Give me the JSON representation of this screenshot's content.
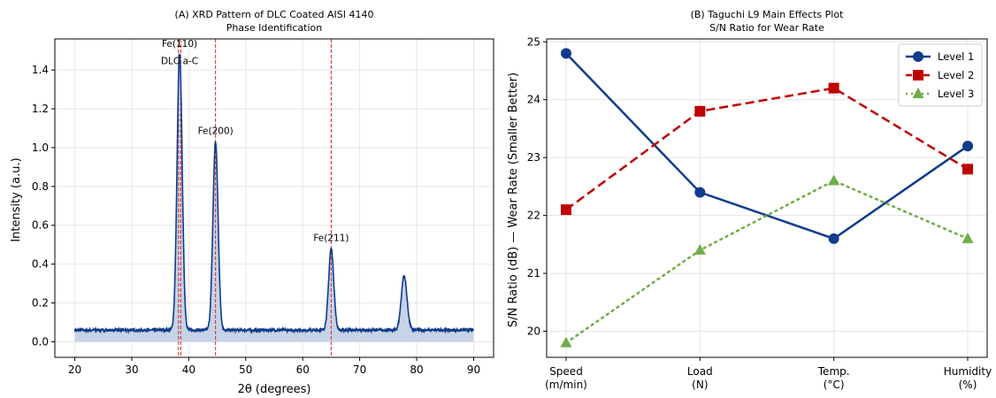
{
  "chart_data": [
    {
      "type": "line",
      "title": "(A) XRD Pattern of DLC Coated AISI 4140",
      "subtitle": "Phase Identification",
      "xlabel": "2θ (degrees)",
      "ylabel": "Intensity (a.u.)",
      "xlim": [
        16.5,
        93.5
      ],
      "ylim": [
        -0.08,
        1.56
      ],
      "xticks": [
        20,
        30,
        40,
        50,
        60,
        70,
        80,
        90
      ],
      "yticks": [
        0.0,
        0.2,
        0.4,
        0.6,
        0.8,
        1.0,
        1.2,
        1.4
      ],
      "grid": true,
      "baseline": 0.06,
      "fill_color": "#c7d3e6",
      "line_color": "#0f3c8c",
      "peaks": [
        {
          "x": 38.4,
          "height": 1.48,
          "width": 0.45
        },
        {
          "x": 44.7,
          "height": 1.03,
          "width": 0.45
        },
        {
          "x": 65.0,
          "height": 0.48,
          "width": 0.45
        },
        {
          "x": 77.8,
          "height": 0.34,
          "width": 0.5
        }
      ],
      "reference_lines": {
        "color": "#d62728",
        "x": [
          38.2,
          38.6,
          44.7,
          65.0
        ]
      },
      "annotations": [
        {
          "text": "Fe(110)",
          "x": 38.4,
          "y": 1.52
        },
        {
          "text": "DLC a-C",
          "x": 38.4,
          "y": 1.43
        },
        {
          "text": "Fe(200)",
          "x": 44.7,
          "y": 1.07
        },
        {
          "text": "Fe(211)",
          "x": 65.0,
          "y": 0.52
        }
      ]
    },
    {
      "type": "line",
      "title": "(B) Taguchi L9 Main Effects Plot",
      "subtitle": "S/N Ratio for Wear Rate",
      "xlabel": "",
      "ylabel": "S/N Ratio (dB) — Wear Rate (Smaller Better)",
      "categories": [
        [
          "Speed",
          "(m/min)"
        ],
        [
          "Load",
          "(N)"
        ],
        [
          "Temp.",
          "(°C)"
        ],
        [
          "Humidity",
          "(%)"
        ]
      ],
      "ylim": [
        19.55,
        25.05
      ],
      "yticks": [
        20,
        21,
        22,
        23,
        24,
        25
      ],
      "grid": true,
      "legend_position": "top-right",
      "series": [
        {
          "name": "Level 1",
          "values": [
            24.8,
            22.4,
            21.6,
            23.2
          ],
          "color": "#0f3c8c",
          "dash": "",
          "marker": "circle"
        },
        {
          "name": "Level 2",
          "values": [
            22.1,
            23.8,
            24.2,
            22.8
          ],
          "color": "#c00000",
          "dash": "10 5",
          "marker": "square"
        },
        {
          "name": "Level 3",
          "values": [
            19.8,
            21.4,
            22.6,
            21.6
          ],
          "color": "#70ad47",
          "dash": "2 5",
          "marker": "triangle"
        }
      ]
    }
  ]
}
